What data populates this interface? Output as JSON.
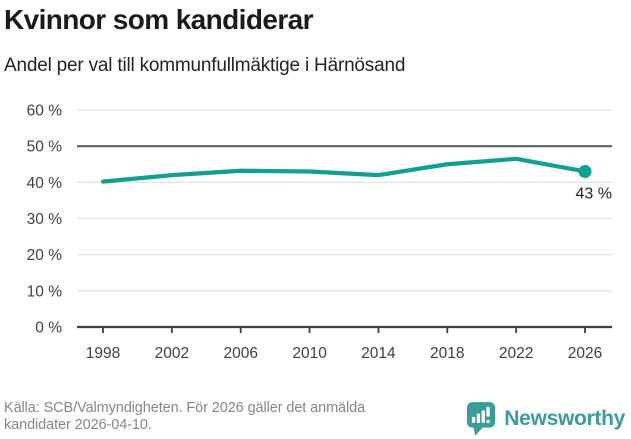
{
  "header": {
    "title": "Kvinnor som kandiderar",
    "subtitle": "Andel per val till kommunfullmäktige i Härnösand"
  },
  "chart_data": {
    "type": "line",
    "title": "Kvinnor som kandiderar",
    "subtitle": "Andel per val till kommunfullmäktige i Härnösand",
    "x": [
      1998,
      2002,
      2006,
      2010,
      2014,
      2018,
      2022,
      2026
    ],
    "series": [
      {
        "name": "Andel kvinnor som kandiderar",
        "values": [
          40.2,
          42,
          43.2,
          43,
          42,
          45,
          46.5,
          43
        ]
      }
    ],
    "xlabel": "",
    "ylabel": "",
    "ylim": [
      0,
      60
    ],
    "ytick_step": 10,
    "ytick_suffix": " %",
    "reference_line": 50,
    "grid": true,
    "legend": "none",
    "end_label": "43 %",
    "colors": {
      "line": "#12a091",
      "grid": "#e4e4e4",
      "reference_line": "#5d6166",
      "axis": "#3c4043",
      "tick_label": "#3c4043",
      "end_label_text": "#202124"
    }
  },
  "footer": {
    "source": "Källa: SCB/Valmyndigheten. För 2026 gäller det anmälda kandidater 2026-04-10.",
    "logo_text": "Newsworthy",
    "logo_color": "#3a9d97"
  }
}
